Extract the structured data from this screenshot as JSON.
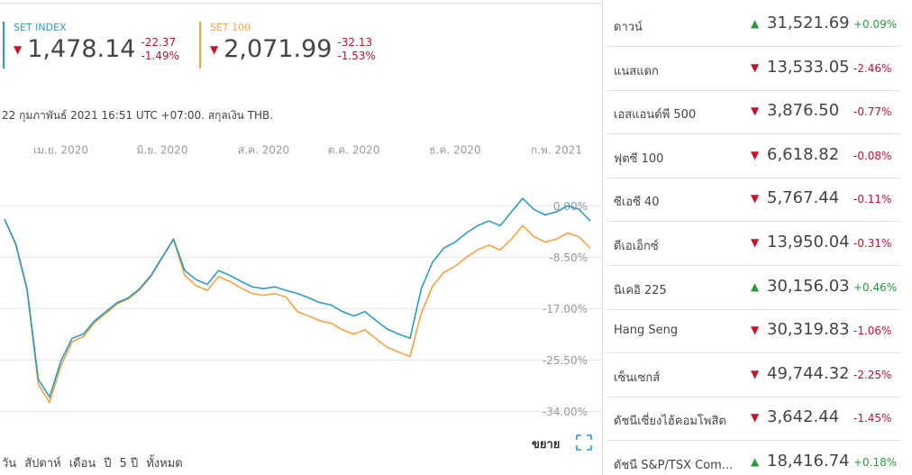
{
  "quotes": [
    {
      "name": "SET INDEX",
      "value": "1,478.14",
      "change": "-22.37",
      "change_percent": "-1.49%",
      "color": "#2e9ac4"
    },
    {
      "name": "SET 100",
      "value": "2,071.99",
      "change": "-32.13",
      "change_percent": "-1.53%",
      "color": "#f5a345"
    }
  ],
  "timestamp": "22 กุมภาพันธ์ 2021 16:51 UTC +07:00. สกุลเงิน THB.",
  "chart_data": {
    "type": "line",
    "categories": [
      null,
      null,
      null,
      null,
      null,
      "เม.ย. 2020",
      null,
      null,
      null,
      null,
      null,
      null,
      null,
      null,
      "มิ.ย. 2020",
      null,
      null,
      null,
      null,
      null,
      null,
      null,
      null,
      "ส.ค. 2020",
      null,
      null,
      null,
      null,
      null,
      null,
      null,
      "ต.ค. 2020",
      null,
      null,
      null,
      null,
      null,
      null,
      null,
      null,
      "ธ.ค. 2020",
      null,
      null,
      null,
      null,
      null,
      null,
      null,
      null,
      "ก.พ. 2021",
      null,
      null,
      null
    ],
    "series": [
      {
        "name": "SET INDEX",
        "color": "#2e9ac4",
        "values": [
          -2.2,
          -6.3,
          -13.7,
          -28.7,
          -31.6,
          -25.7,
          -21.9,
          -21.2,
          -19,
          -17.5,
          -16,
          -15.2,
          -13.7,
          -11.5,
          -8.5,
          -5.5,
          -10.7,
          -12.2,
          -13,
          -10.7,
          -11.5,
          -12.5,
          -13.4,
          -13.7,
          -13.4,
          -14,
          -14.5,
          -15.2,
          -16,
          -16.4,
          -17.5,
          -18.2,
          -17.5,
          -19,
          -20.4,
          -21.2,
          -21.9,
          -13.7,
          -9.3,
          -7,
          -6,
          -4.5,
          -3.3,
          -2.5,
          -3.3,
          -1,
          1.2,
          -0.6,
          -1.5,
          -1,
          0,
          -0.6,
          -2.5
        ]
      },
      {
        "name": "SET 100",
        "color": "#f5a345",
        "values": [
          -2.2,
          -6.5,
          -14,
          -29.5,
          -32.5,
          -26.5,
          -22.5,
          -21.6,
          -19.3,
          -17.8,
          -16.2,
          -15.4,
          -13.9,
          -11.7,
          -8.6,
          -5.6,
          -11.5,
          -13.2,
          -14,
          -11.7,
          -12.5,
          -13.6,
          -14.5,
          -14.8,
          -14.5,
          -15.1,
          -17.5,
          -18.2,
          -19,
          -19.4,
          -20.5,
          -21.2,
          -20.5,
          -22,
          -23.4,
          -24.2,
          -24.9,
          -17.7,
          -13.3,
          -11,
          -10,
          -8.5,
          -7.3,
          -6.5,
          -7.3,
          -5.5,
          -3.3,
          -5.1,
          -6,
          -5.5,
          -4.5,
          -5.1,
          -7
        ]
      }
    ],
    "ylim": [
      -36,
      6
    ],
    "yticks": [
      {
        "value": 0,
        "label": "0.00%"
      },
      {
        "value": -8.5,
        "label": "-8.50%"
      },
      {
        "value": -17,
        "label": "-17.00%"
      },
      {
        "value": -25.5,
        "label": "-25.50%"
      },
      {
        "value": -34,
        "label": "-34.00%"
      }
    ],
    "grid": true
  },
  "ranges": [
    "วัน",
    "สัปดาห์",
    "เดือน",
    "ปี",
    "5 ปี",
    "ทั้งหมด"
  ],
  "expand_label": "ขยาย",
  "markets": [
    {
      "name": "ดาวน์",
      "value": "31,521.69",
      "change": "+0.09%"
    },
    {
      "name": "แนสแดก",
      "value": "13,533.05",
      "change": "-2.46%"
    },
    {
      "name": "เอสแอนด์พี 500",
      "value": "3,876.50",
      "change": "-0.77%"
    },
    {
      "name": "ฟุตซี 100",
      "value": "6,618.82",
      "change": "-0.08%"
    },
    {
      "name": "ซีเอซี 40",
      "value": "5,767.44",
      "change": "-0.11%"
    },
    {
      "name": "ดีเอเอ็กซ์",
      "value": "13,950.04",
      "change": "-0.31%"
    },
    {
      "name": "นิเคอิ 225",
      "value": "30,156.03",
      "change": "+0.46%"
    },
    {
      "name": "Hang Seng",
      "value": "30,319.83",
      "change": "-1.06%"
    },
    {
      "name": "เซ็นเซกส์",
      "value": "49,744.32",
      "change": "-2.25%"
    },
    {
      "name": "ดัชนีเซี่ยงไฮ้คอมโพสิต",
      "value": "3,642.44",
      "change": "-1.45%"
    },
    {
      "name": "ดัชนี S&P/TSX Com...",
      "value": "18,416.74",
      "change": "+0.18%"
    }
  ]
}
